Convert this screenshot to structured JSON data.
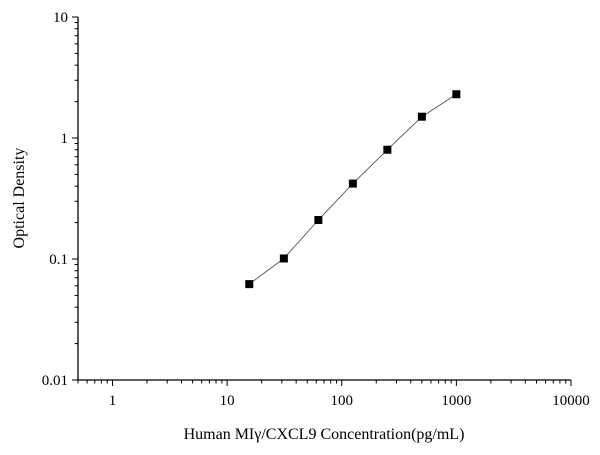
{
  "chart_data": {
    "type": "scatter",
    "title": "",
    "xlabel": "Human MIγ/CXCL9 Concentration(pg/mL)",
    "ylabel": "Optical Density",
    "x_scale": "log",
    "y_scale": "log",
    "xlim": [
      0.5,
      10000
    ],
    "ylim": [
      0.01,
      10
    ],
    "x_ticks": [
      1,
      10,
      100,
      1000,
      10000
    ],
    "x_tick_labels": [
      "1",
      "10",
      "100",
      "1000",
      "10000"
    ],
    "y_ticks": [
      0.01,
      0.1,
      1,
      10
    ],
    "y_tick_labels": [
      "0.01",
      "0.1",
      "1",
      "10"
    ],
    "grid": false,
    "legend": "none",
    "series": [
      {
        "x": [
          15.6,
          31.25,
          62.5,
          125,
          250,
          500,
          1000
        ],
        "y": [
          0.062,
          0.101,
          0.21,
          0.42,
          0.8,
          1.5,
          2.3
        ],
        "marker": "square",
        "marker_color": "#000000",
        "line_color": "#555555"
      }
    ]
  }
}
